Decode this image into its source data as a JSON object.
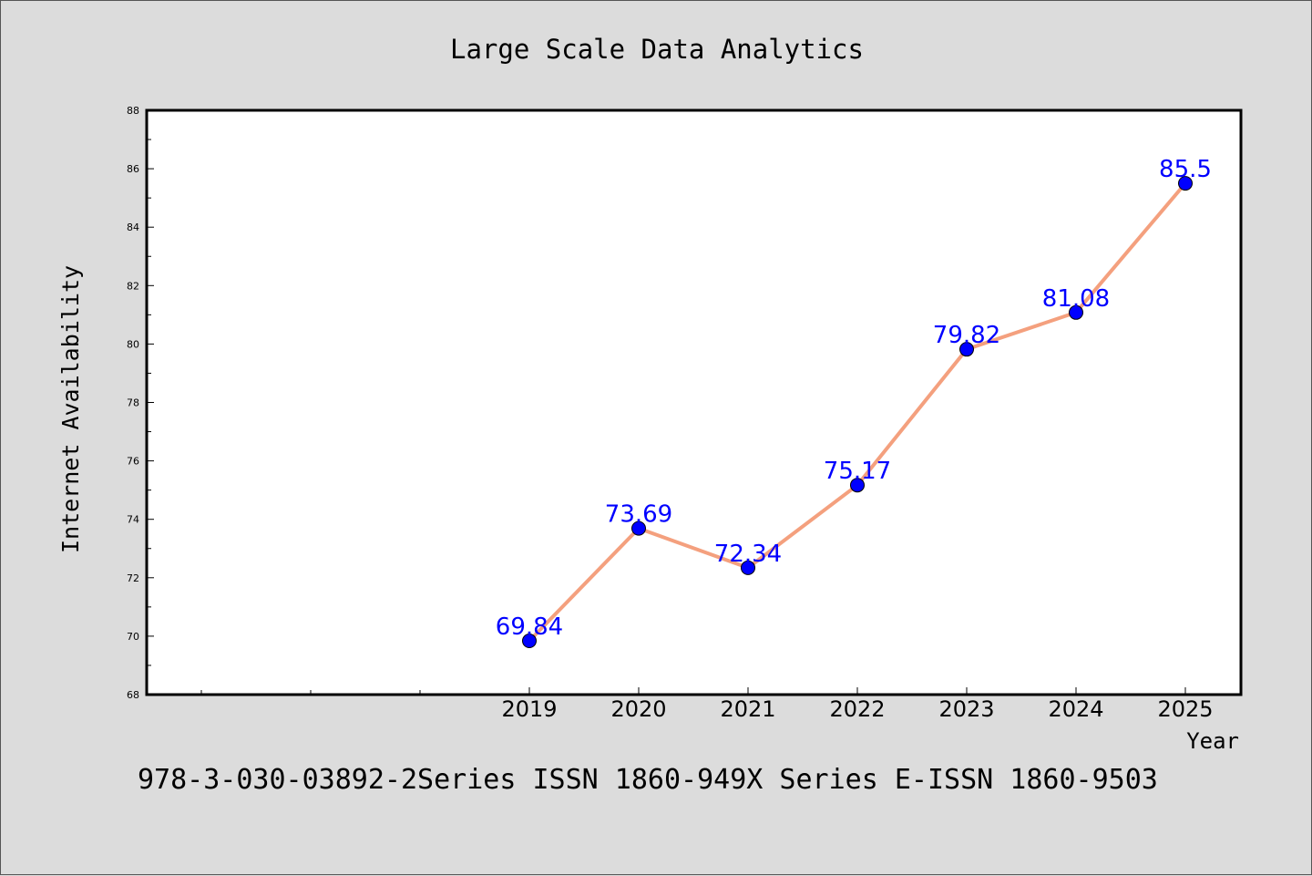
{
  "chart_data": {
    "type": "line",
    "title": "Large Scale Data Analytics",
    "xlabel": "Year",
    "ylabel": "Internet Availability",
    "footer": "978-3-030-03892-2Series ISSN 1860-949X Series E-ISSN 1860-9503",
    "x": [
      "2019",
      "2020",
      "2021",
      "2022",
      "2023",
      "2024",
      "2025"
    ],
    "series": [
      {
        "values": [
          69.84,
          73.69,
          72.34,
          75.17,
          79.82,
          81.08,
          85.5
        ],
        "labels": [
          "69.84",
          "73.69",
          "72.34",
          "75.17",
          "79.82",
          "81.08",
          "85.5"
        ]
      }
    ],
    "ylim": [
      68,
      88
    ],
    "yticks": [
      "68",
      "70",
      "72",
      "74",
      "76",
      "78",
      "80",
      "82",
      "84",
      "86",
      "88"
    ],
    "grid": false,
    "legend": "none",
    "colors": {
      "line": "#f4a07e",
      "marker": "#0000ff",
      "label": "#0000ff",
      "background": "#dcdcdc",
      "plot_area": "#ffffff"
    }
  }
}
